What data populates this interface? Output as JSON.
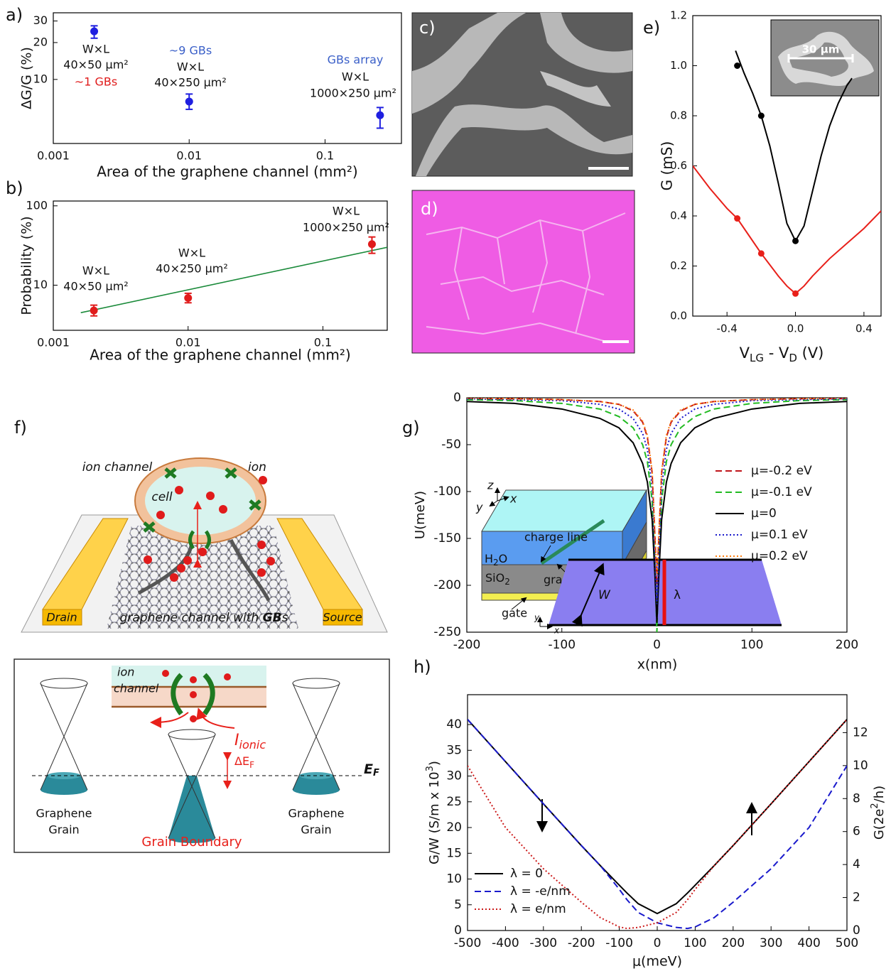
{
  "panels": [
    "a)",
    "b)",
    "c)",
    "d)",
    "e)",
    "f)",
    "g)",
    "h)"
  ],
  "chart_data": [
    {
      "type": "scatter",
      "xscale": "log",
      "yscale": "log",
      "xlabel": "Area of the graphene channel (mm²)",
      "ylabel": "ΔG/G (%)",
      "xlim": [
        0.001,
        0.365
      ],
      "ylim": [
        3,
        35
      ],
      "xticks": [
        0.001,
        0.01,
        0.1
      ],
      "yticks": [
        10,
        20,
        30
      ],
      "series": [
        {
          "color": "#1f1fe0",
          "x": [
            0.002,
            0.01,
            0.254
          ],
          "values": [
            24.7,
            6.6,
            5.1
          ],
          "y_low": [
            21.7,
            5.7,
            4.0
          ],
          "y_high": [
            27.4,
            7.6,
            5.9
          ]
        }
      ],
      "annotations": [
        "W×L",
        "40×50 µm²",
        "~1 GBs",
        "~9 GBs",
        "W×L",
        "40×250 µm²",
        "GBs array",
        "W×L",
        "1000×250 µm²"
      ]
    },
    {
      "type": "scatter",
      "xscale": "log",
      "yscale": "log",
      "xlabel": "Area of the graphene channel (mm²)",
      "ylabel": "Probability (%)",
      "xlim": [
        0.001,
        0.3
      ],
      "ylim": [
        2.7,
        115
      ],
      "xticks": [
        0.001,
        0.01,
        0.1
      ],
      "yticks": [
        10,
        100
      ],
      "series": [
        {
          "color": "#e01b1b",
          "x": [
            0.002,
            0.01,
            0.231
          ],
          "values": [
            4.8,
            6.9,
            32.9
          ],
          "y_low": [
            4.1,
            6.0,
            25.2
          ],
          "y_high": [
            5.6,
            7.9,
            40.5
          ]
        }
      ],
      "fit": {
        "color": "#1a8a3a",
        "x": [
          0.0016,
          0.3
        ],
        "values": [
          4.5,
          30
        ]
      },
      "annotations": [
        "W×L",
        "40×50 µm²",
        "W×L",
        "40×250 µm²",
        "W×L",
        "1000×250 µm²"
      ]
    },
    {
      "type": "line",
      "xlabel": [
        "V",
        "LG",
        " - V",
        "D",
        " (V)"
      ],
      "ylabel": "G (mS)",
      "xlim": [
        -0.6,
        0.5
      ],
      "ylim": [
        0,
        1.2
      ],
      "xticks": [
        -0.4,
        {
          "value": 0,
          "label": "0.0"
        },
        0.4
      ],
      "yticks": [
        {
          "value": 0,
          "label": "0.0"
        },
        0.2,
        0.4,
        0.6,
        0.8,
        {
          "value": 1,
          "label": "1.0"
        },
        1.2
      ],
      "series": [
        {
          "color": "#000000",
          "x": [
            -0.35,
            -0.3,
            -0.25,
            -0.2,
            -0.15,
            -0.1,
            -0.05,
            0,
            0.05,
            0.1,
            0.15,
            0.2,
            0.25,
            0.3,
            0.33
          ],
          "values": [
            1.06,
            0.97,
            0.89,
            0.8,
            0.68,
            0.53,
            0.37,
            0.3,
            0.36,
            0.5,
            0.64,
            0.76,
            0.85,
            0.92,
            0.95
          ],
          "marker_x": [
            -0.34,
            -0.2,
            0
          ],
          "marker_values": [
            1.0,
            0.8,
            0.3
          ]
        },
        {
          "color": "#e8201a",
          "x": [
            -0.6,
            -0.5,
            -0.4,
            -0.34,
            -0.3,
            -0.2,
            -0.1,
            -0.05,
            0,
            0.05,
            0.1,
            0.2,
            0.3,
            0.4,
            0.5
          ],
          "values": [
            0.6,
            0.51,
            0.43,
            0.39,
            0.35,
            0.25,
            0.16,
            0.12,
            0.09,
            0.12,
            0.16,
            0.23,
            0.29,
            0.35,
            0.42
          ],
          "marker_x": [
            -0.34,
            -0.2,
            0
          ],
          "marker_values": [
            0.39,
            0.25,
            0.09
          ]
        }
      ],
      "inset_label": "30 µm"
    },
    {
      "type": "line",
      "xlabel": "x(nm)",
      "ylabel": "U(meV)",
      "legend": "right",
      "xlim": [
        -200,
        200
      ],
      "ylim": [
        -250,
        0
      ],
      "xticks": [
        -200,
        -100,
        0,
        100,
        200
      ],
      "yticks": [
        0,
        -50,
        -100,
        -150,
        -200,
        -250
      ],
      "x": [
        -200,
        -150,
        -100,
        -60,
        -40,
        -25,
        -15,
        -10,
        -5,
        -2,
        0,
        2,
        5,
        10,
        15,
        25,
        40,
        60,
        100,
        150,
        200
      ],
      "series": [
        {
          "name": "μ=-0.2 eV",
          "color": "#c0141a",
          "dash": "dashed",
          "values": [
            -1,
            -1,
            -2,
            -4,
            -7,
            -14,
            -26,
            -42,
            -80,
            -150,
            -200,
            -150,
            -80,
            -42,
            -26,
            -14,
            -7,
            -4,
            -2,
            -1,
            -1
          ]
        },
        {
          "name": "μ=-0.1 eV",
          "color": "#22bb22",
          "dash": "dashed",
          "values": [
            -2,
            -3,
            -6,
            -12,
            -20,
            -32,
            -50,
            -68,
            -110,
            -180,
            -250,
            -180,
            -110,
            -68,
            -50,
            -32,
            -20,
            -12,
            -6,
            -3,
            -2
          ]
        },
        {
          "name": "μ=0",
          "color": "#000000",
          "dash": "solid",
          "values": [
            -4,
            -6,
            -12,
            -22,
            -32,
            -48,
            -70,
            -90,
            -130,
            -190,
            -240,
            -190,
            -130,
            -90,
            -70,
            -48,
            -32,
            -22,
            -12,
            -6,
            -4
          ]
        },
        {
          "name": "μ=0.1 eV",
          "color": "#1a1acc",
          "dash": "dotted",
          "values": [
            -1,
            -2,
            -3,
            -7,
            -12,
            -22,
            -38,
            -55,
            -95,
            -170,
            -220,
            -170,
            -95,
            -55,
            -38,
            -22,
            -12,
            -7,
            -3,
            -2,
            -1
          ]
        },
        {
          "name": "μ=0.2 eV",
          "color": "#ff7f0e",
          "dash": "dotted",
          "values": [
            0,
            -1,
            -2,
            -4,
            -7,
            -13,
            -25,
            -40,
            -78,
            -145,
            -190,
            -145,
            -78,
            -40,
            -25,
            -13,
            -7,
            -4,
            -2,
            -1,
            0
          ]
        }
      ],
      "inset": {
        "z": "z",
        "x": "x",
        "y": "y",
        "charge_line": "charge line",
        "water": [
          "H",
          "2",
          "O"
        ],
        "oxide": [
          "SiO",
          "2"
        ],
        "graphene": "graphene",
        "gate": "gate"
      }
    },
    {
      "type": "line",
      "xlabel": "μ(meV)",
      "ylabel": [
        "G/W (S/m x 10",
        "3",
        ")"
      ],
      "y2label": [
        "G(2e",
        "2",
        "/h)"
      ],
      "legend": "lower left",
      "xlim": [
        -500,
        500
      ],
      "ylim": [
        0,
        45.8
      ],
      "y2lim": [
        0,
        14.3
      ],
      "xticks": [
        -500,
        -400,
        -300,
        -200,
        -100,
        0,
        100,
        200,
        300,
        400,
        500
      ],
      "yticks": [
        0,
        5,
        10,
        15,
        20,
        25,
        30,
        35,
        40
      ],
      "y2ticks": [
        0,
        2,
        4,
        6,
        8,
        10,
        12
      ],
      "x": [
        -500,
        -400,
        -300,
        -200,
        -150,
        -100,
        -80,
        -50,
        0,
        50,
        80,
        100,
        150,
        200,
        300,
        400,
        500
      ],
      "series": [
        {
          "name": "λ = 0",
          "color": "#000000",
          "dash": "solid",
          "values": [
            41,
            32.8,
            24.6,
            16.5,
            12.6,
            8.8,
            7.3,
            5.2,
            3.3,
            5.2,
            7.3,
            8.8,
            12.6,
            16.5,
            24.6,
            32.8,
            41
          ]
        },
        {
          "name": "λ = -e/nm",
          "color": "#1a1acc",
          "dash": "dashed",
          "values": [
            41,
            32.8,
            24.6,
            16.5,
            12.6,
            8.0,
            6.0,
            3.5,
            1.5,
            0.6,
            0.4,
            0.7,
            2.5,
            5.5,
            12,
            20,
            32
          ]
        },
        {
          "name": "λ = e/nm",
          "color": "#cc1a1a",
          "dash": "dotted",
          "values": [
            32,
            20,
            12,
            5.5,
            2.5,
            0.7,
            0.4,
            0.6,
            1.5,
            3.5,
            6.0,
            8.0,
            12.6,
            16.5,
            24.6,
            32.8,
            41
          ]
        }
      ],
      "inset": {
        "width": "W",
        "lambda": "λ",
        "y": "y",
        "x": "x"
      }
    }
  ],
  "schematic_f": {
    "upper": {
      "ion_channel": "ion channel",
      "ion": "ion",
      "cell": "cell",
      "drain": "Drain",
      "source": "Source",
      "caption": [
        "graphene channel with ",
        "GB",
        "s"
      ]
    },
    "lower": {
      "ion_channel": [
        "ion",
        "channel"
      ],
      "current": [
        "I",
        "ionic"
      ],
      "delta_ef": [
        "ΔE",
        "F"
      ],
      "ef": [
        "E",
        "F"
      ],
      "left_grain": [
        "Graphene",
        "Grain"
      ],
      "right_grain": [
        "Graphene",
        "Grain"
      ],
      "boundary": "Grain Boundary"
    }
  }
}
